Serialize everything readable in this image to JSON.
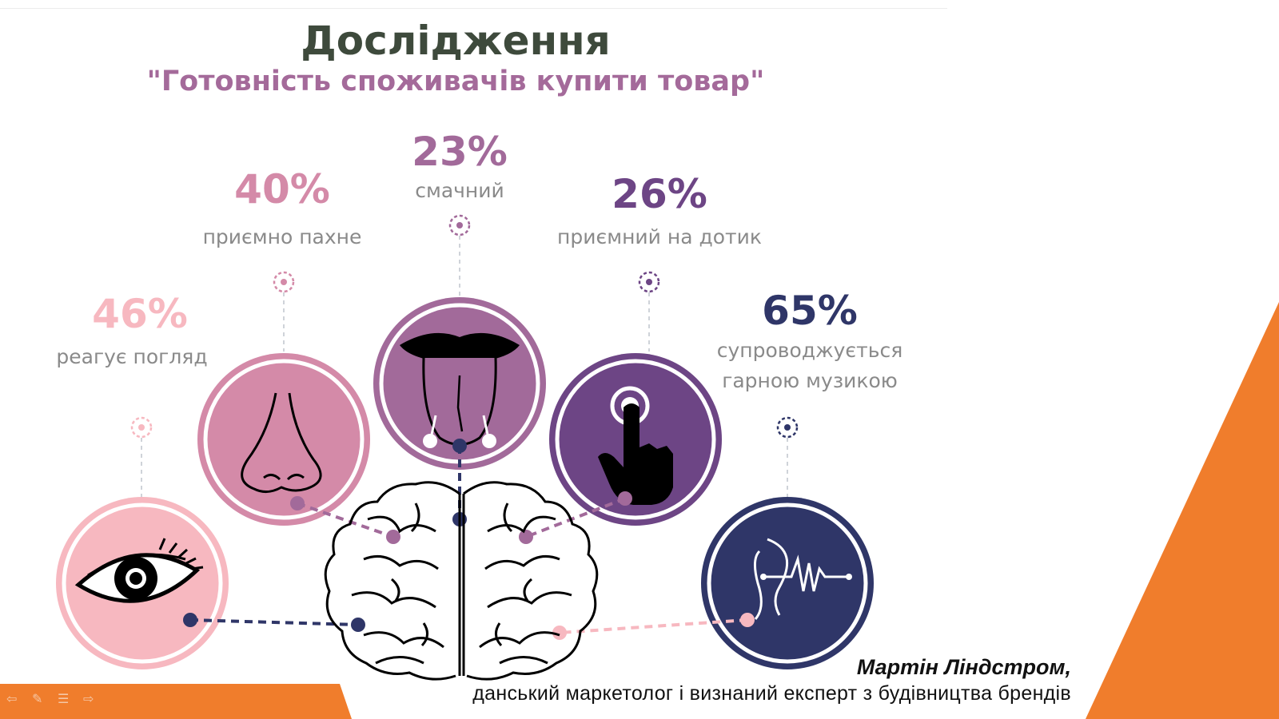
{
  "heading": {
    "title": "Дослідження",
    "subtitle": "\"Готовність споживачів купити товар\""
  },
  "senses": [
    {
      "key": "sight",
      "percent": "46%",
      "description": "реагує погляд",
      "color": "#f7b8c0",
      "icon": "eye-icon"
    },
    {
      "key": "smell",
      "percent": "40%",
      "description": "приємно пахне",
      "color": "#d48aa8",
      "icon": "nose-icon"
    },
    {
      "key": "taste",
      "percent": "23%",
      "description": "смачний",
      "color": "#a26a9a",
      "icon": "tongue-icon"
    },
    {
      "key": "touch",
      "percent": "26%",
      "description": "приємний на дотик",
      "color": "#6d4585",
      "icon": "pointing-hand-icon"
    },
    {
      "key": "hearing",
      "percent": "65%",
      "description": "супроводжується гарною музикою",
      "color": "#2f3668",
      "icon": "ear-soundwave-icon"
    }
  ],
  "quote": {
    "author": "Мартін Ліндстром,",
    "author_description": "данський маркетолог і визнаний експерт з будівництва брендів"
  },
  "decor": {
    "accent_color": "#f07d2c",
    "brain_icon": "brain-icon",
    "nav_icons": [
      "back-arrow-icon",
      "pen-icon",
      "menu-icon",
      "forward-arrow-icon"
    ]
  }
}
